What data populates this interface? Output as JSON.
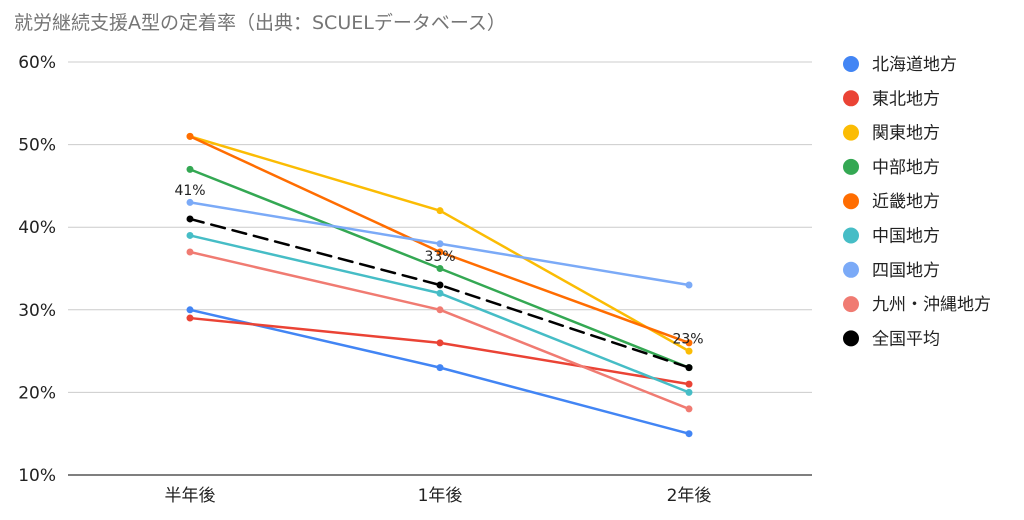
{
  "chart_data": {
    "type": "line",
    "title": "就労継続支援A型の定着率（出典：SCUELデータベース）",
    "categories": [
      "半年後",
      "1年後",
      "2年後"
    ],
    "y_ticks": [
      "10%",
      "20%",
      "30%",
      "40%",
      "50%",
      "60%"
    ],
    "ylim": [
      10,
      60
    ],
    "grid": true,
    "legend_position": "right",
    "series": [
      {
        "name": "北海道地方",
        "color": "#4285F4",
        "values": [
          30,
          23,
          15
        ]
      },
      {
        "name": "東北地方",
        "color": "#EA4335",
        "values": [
          29,
          26,
          21
        ]
      },
      {
        "name": "関東地方",
        "color": "#FBBC04",
        "values": [
          51,
          42,
          25
        ]
      },
      {
        "name": "中部地方",
        "color": "#34A853",
        "values": [
          47,
          35,
          23
        ]
      },
      {
        "name": "近畿地方",
        "color": "#FF6D01",
        "values": [
          51,
          37,
          26
        ]
      },
      {
        "name": "中国地方",
        "color": "#46BDC6",
        "values": [
          39,
          32,
          20
        ]
      },
      {
        "name": "四国地方",
        "color": "#7BAAF7",
        "values": [
          43,
          38,
          33
        ]
      },
      {
        "name": "九州・沖縄地方",
        "color": "#F07B72",
        "values": [
          37,
          30,
          18
        ]
      },
      {
        "name": "全国平均",
        "color": "#000000",
        "values": [
          41,
          33,
          23
        ],
        "dashed": true,
        "data_labels": [
          "41%",
          "33%",
          "23%"
        ]
      }
    ]
  }
}
